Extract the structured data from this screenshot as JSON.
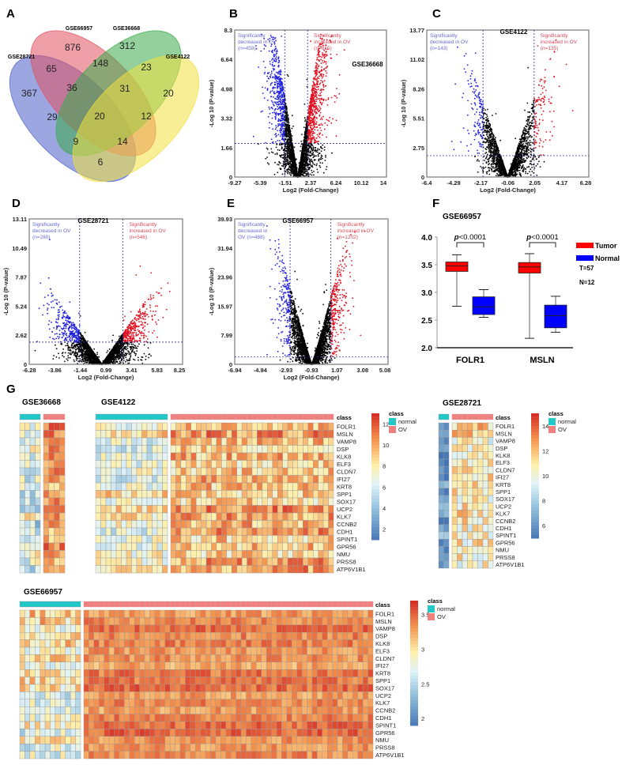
{
  "panel_labels": [
    "A",
    "B",
    "C",
    "D",
    "E",
    "F",
    "G"
  ],
  "colors": {
    "decreased": "#2020e0",
    "increased": "#e01020",
    "ns": "#000000",
    "tumor": "#ff0000",
    "normal": "#0000ff",
    "class_normal": "#20c8c8",
    "class_ov": "#f08080"
  },
  "chart_data": [
    {
      "type": "venn",
      "panel": "A",
      "sets": [
        "GSE28721",
        "GSE66957",
        "GSE36668",
        "GSE4122"
      ],
      "regions": [
        {
          "sets": [
            "GSE66957"
          ],
          "value": "876"
        },
        {
          "sets": [
            "GSE36668"
          ],
          "value": "312"
        },
        {
          "sets": [
            "GSE28721",
            "GSE66957"
          ],
          "value": "65"
        },
        {
          "sets": [
            "GSE66957",
            "GSE36668"
          ],
          "value": "148"
        },
        {
          "sets": [
            "GSE36668",
            "GSE4122"
          ],
          "value": "23"
        },
        {
          "sets": [
            "GSE28721"
          ],
          "value": "367"
        },
        {
          "sets": [
            "GSE28721",
            "GSE66957",
            "GSE36668"
          ],
          "value": "36"
        },
        {
          "sets": [
            "GSE66957",
            "GSE36668",
            "GSE4122"
          ],
          "value": "31"
        },
        {
          "sets": [
            "GSE4122"
          ],
          "value": "20"
        },
        {
          "sets": [
            "GSE28721",
            "GSE36668"
          ],
          "value": "29"
        },
        {
          "sets": [
            "GSE28721",
            "GSE66957",
            "GSE36668",
            "GSE4122"
          ],
          "value": "20"
        },
        {
          "sets": [
            "GSE66957",
            "GSE4122"
          ],
          "value": "12"
        },
        {
          "sets": [
            "GSE28721",
            "GSE36668",
            "GSE4122"
          ],
          "value": "9"
        },
        {
          "sets": [
            "GSE28721",
            "GSE66957",
            "GSE4122"
          ],
          "value": "14"
        },
        {
          "sets": [
            "GSE28721",
            "GSE4122"
          ],
          "value": "6"
        }
      ]
    },
    {
      "type": "scatter",
      "panel": "B",
      "dataset": "GSE36668",
      "xlabel": "Log2 (Fold-Change)",
      "ylabel": "-Log 10 (P-value)",
      "xticks": [
        "-9.27",
        "-5.39",
        "-1.51",
        "2.37",
        "6.24",
        "10.12",
        "14"
      ],
      "yticks": [
        "0",
        "1.66",
        "3.32",
        "4.98",
        "6.64",
        "8.3"
      ],
      "xlim": [
        -9.27,
        14
      ],
      "ylim": [
        0,
        8.3
      ],
      "fc_cutoffs": [
        -1.6,
        1.9
      ],
      "p_cutoff": 1.9,
      "decreased": [
        "Significantly",
        "decreased in OV",
        "(n=459)"
      ],
      "increased": [
        "Significantly",
        "increased in OV",
        "(n=615)"
      ]
    },
    {
      "type": "scatter",
      "panel": "C",
      "dataset": "GSE4122",
      "xlabel": "Log2 (Fold-Change)",
      "ylabel": "-Log 10 (P-value)",
      "xticks": [
        "-6.4",
        "-4.29",
        "-2.17",
        "-0.06",
        "2.05",
        "4.17",
        "6.28"
      ],
      "yticks": [
        "0",
        "2.75",
        "5.51",
        "8.26",
        "11.02",
        "13.77"
      ],
      "xlim": [
        -6.4,
        6.28
      ],
      "ylim": [
        0,
        13.77
      ],
      "fc_cutoffs": [
        -2.0,
        2.0
      ],
      "p_cutoff": 2.0,
      "decreased": [
        "Significantly",
        "decreased in OV",
        "(n=143)"
      ],
      "increased": [
        "Significantly",
        "increased in OV",
        "(n=135)"
      ]
    },
    {
      "type": "scatter",
      "panel": "D",
      "dataset": "GSE28721",
      "xlabel": "Log2 (Fold-Change)",
      "ylabel": "-Log 10 (P-value)",
      "xticks": [
        "-6.28",
        "-3.86",
        "-1.44",
        "0.99",
        "3.41",
        "5.83",
        "8.25"
      ],
      "yticks": [
        "0",
        "2.62",
        "5.24",
        "7.87",
        "10.49",
        "13.11"
      ],
      "xlim": [
        -6.28,
        8.25
      ],
      "ylim": [
        0,
        13.11
      ],
      "fc_cutoffs": [
        -1.5,
        2.6
      ],
      "p_cutoff": 2.0,
      "decreased": [
        "Significantly",
        "decreased in OV",
        "(n=280)"
      ],
      "increased": [
        "Significantly",
        "increased in OV",
        "(n=546)"
      ]
    },
    {
      "type": "scatter",
      "panel": "E",
      "dataset": "GSE66957",
      "xlabel": "Log2 (Fold-Change)",
      "ylabel": "-Log 10 (P-value)",
      "xticks": [
        "-6.94",
        "-4.94",
        "-2.93",
        "-0.93",
        "1.07",
        "3.08",
        "5.08"
      ],
      "yticks": [
        "0",
        "7.99",
        "15.97",
        "23.96",
        "31.94",
        "39.93"
      ],
      "xlim": [
        -6.94,
        5.08
      ],
      "ylim": [
        0,
        39.93
      ],
      "fc_cutoffs": [
        -2.6,
        0.6
      ],
      "p_cutoff": 2.0,
      "decreased": [
        "Significantly",
        "decreased in",
        "OV (n=488)"
      ],
      "increased": [
        "Significantly",
        "increased in OV",
        "(n=1202)"
      ]
    },
    {
      "type": "box",
      "panel": "F",
      "title": "GSE66957",
      "ylim": [
        2.0,
        4.0
      ],
      "yticks": [
        "2.0",
        "2.5",
        "3.0",
        "3.5",
        "4.0"
      ],
      "categories": [
        "FOLR1",
        "MSLN"
      ],
      "pvalue": "<0.0001",
      "p_symbol": "p",
      "legend": [
        "Tumor",
        "Normal"
      ],
      "notes": [
        "T=57",
        "N=12"
      ],
      "boxes": [
        {
          "category": "FOLR1",
          "group": "Tumor",
          "min": 2.75,
          "q1": 3.38,
          "median": 3.48,
          "q3": 3.55,
          "max": 3.68
        },
        {
          "category": "FOLR1",
          "group": "Normal",
          "min": 2.55,
          "q1": 2.6,
          "median": 2.74,
          "q3": 2.92,
          "max": 3.05
        },
        {
          "category": "MSLN",
          "group": "Tumor",
          "min": 2.17,
          "q1": 3.35,
          "median": 3.46,
          "q3": 3.54,
          "max": 3.7
        },
        {
          "category": "MSLN",
          "group": "Normal",
          "min": 2.28,
          "q1": 2.36,
          "median": 2.58,
          "q3": 2.77,
          "max": 2.93
        }
      ]
    },
    {
      "type": "heatmap",
      "panel": "G",
      "dataset": "GSE36668",
      "n_normal": 4,
      "n_ov": 4,
      "scale": [
        1,
        13
      ]
    },
    {
      "type": "heatmap",
      "panel": "G",
      "dataset": "GSE4122",
      "n_normal": 14,
      "n_ov": 32,
      "scale": [
        1,
        13
      ],
      "colorbar_ticks": [
        "12",
        "10",
        "8",
        "6",
        "4",
        "2"
      ]
    },
    {
      "type": "heatmap",
      "panel": "G",
      "dataset": "GSE28721",
      "n_normal": 2,
      "n_ov": 8,
      "scale": [
        5,
        15
      ],
      "colorbar_ticks": [
        "14",
        "12",
        "10",
        "8",
        "6"
      ]
    },
    {
      "type": "heatmap",
      "panel": "G",
      "dataset": "GSE66957",
      "n_normal": 12,
      "n_ov": 57,
      "scale": [
        1.9,
        3.7
      ],
      "colorbar_ticks": [
        "3.5",
        "3",
        "2.5",
        "2"
      ]
    }
  ],
  "heatmap_common": {
    "class_label": "class",
    "legend_title": "class",
    "legend_items": [
      "normal",
      "OV"
    ],
    "genes": [
      "FOLR1",
      "MSLN",
      "VAMP8",
      "DSP",
      "KLK8",
      "ELF3",
      "CLDN7",
      "IFI27",
      "KRT8",
      "SPP1",
      "SOX17",
      "UCP2",
      "KLK7",
      "CCNB2",
      "CDH1",
      "SPINT1",
      "GPR56",
      "NMU",
      "PRSS8",
      "ATP6V1B1"
    ]
  }
}
